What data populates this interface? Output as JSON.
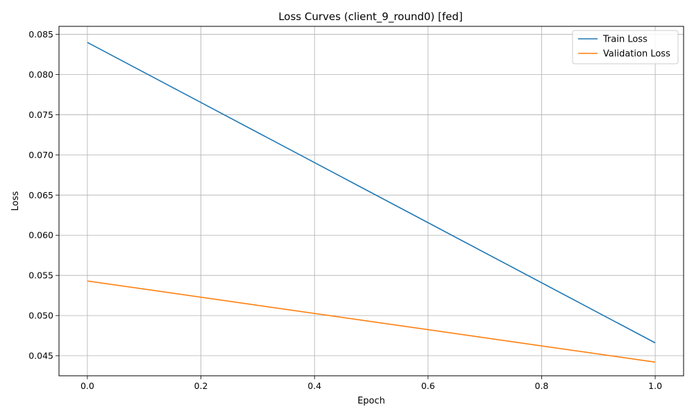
{
  "chart_data": {
    "type": "line",
    "title": "Loss Curves (client_9_round0) [fed]",
    "xlabel": "Epoch",
    "ylabel": "Loss",
    "xlim": [
      -0.05,
      1.05
    ],
    "ylim": [
      0.0425,
      0.086
    ],
    "xticks": [
      0.0,
      0.2,
      0.4,
      0.6,
      0.8,
      1.0
    ],
    "xtick_labels": [
      "0.0",
      "0.2",
      "0.4",
      "0.6",
      "0.8",
      "1.0"
    ],
    "yticks": [
      0.045,
      0.05,
      0.055,
      0.06,
      0.065,
      0.07,
      0.075,
      0.08,
      0.085
    ],
    "ytick_labels": [
      "0.045",
      "0.050",
      "0.055",
      "0.060",
      "0.065",
      "0.070",
      "0.075",
      "0.080",
      "0.085"
    ],
    "grid": true,
    "legend_position": "top-right",
    "series": [
      {
        "name": "Train Loss",
        "color": "#1f77b4",
        "x": [
          0,
          1
        ],
        "y": [
          0.084,
          0.0466
        ]
      },
      {
        "name": "Validation Loss",
        "color": "#ff7f0e",
        "x": [
          0,
          1
        ],
        "y": [
          0.0543,
          0.0442
        ]
      }
    ]
  }
}
